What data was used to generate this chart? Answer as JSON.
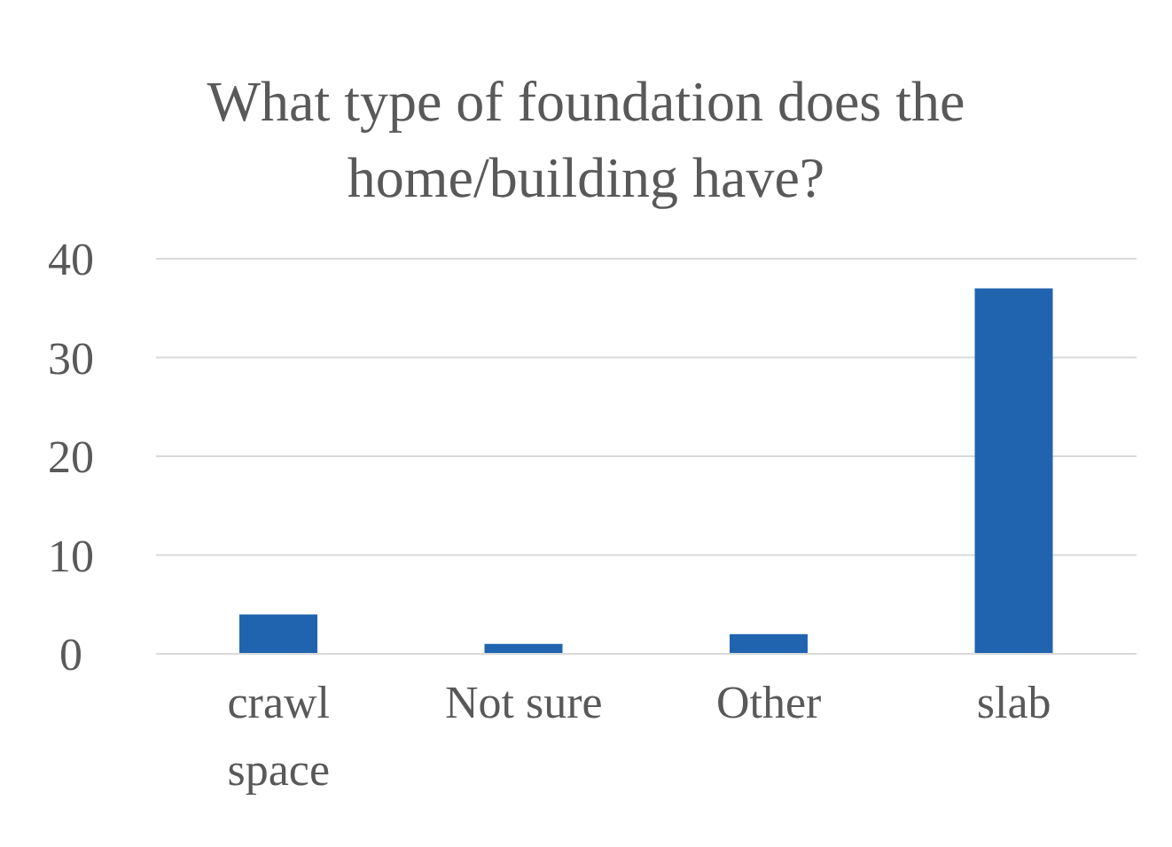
{
  "chart_data": {
    "type": "bar",
    "title": "What type of foundation does the home/building have?",
    "categories": [
      "crawl space",
      "Not sure",
      "Other",
      "slab"
    ],
    "values": [
      4,
      1,
      2,
      37
    ],
    "color": "#2064b0",
    "ylim": [
      0,
      40
    ],
    "yticks": [
      0,
      10,
      20,
      30,
      40
    ],
    "grid": "y"
  }
}
